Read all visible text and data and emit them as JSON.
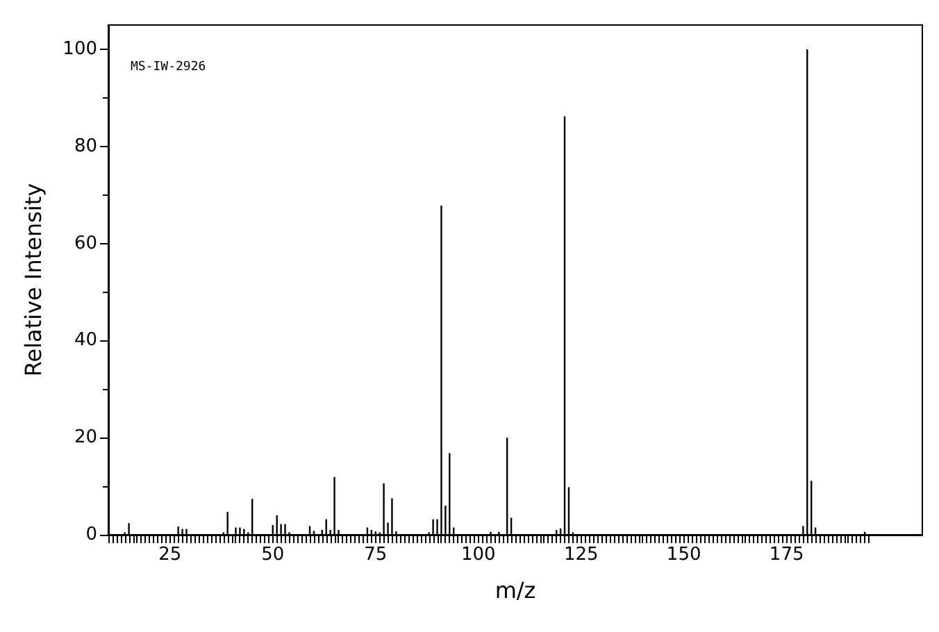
{
  "chart_data": {
    "type": "bar",
    "xlabel": "m/z",
    "ylabel": "Relative Intensity",
    "annotations": [
      "MS-IW-2926"
    ],
    "x": [
      14,
      15,
      27,
      28,
      29,
      38,
      39,
      41,
      42,
      43,
      44,
      45,
      50,
      51,
      52,
      53,
      54,
      59,
      60,
      62,
      63,
      64,
      65,
      66,
      73,
      74,
      75,
      76,
      77,
      78,
      79,
      80,
      88,
      89,
      90,
      91,
      92,
      93,
      94,
      103,
      105,
      107,
      108,
      119,
      120,
      121,
      122,
      123,
      179,
      180,
      181,
      182,
      194
    ],
    "values": [
      0.5,
      2.4,
      1.7,
      1.2,
      1.2,
      0.5,
      4.7,
      1.5,
      1.5,
      1.2,
      0.5,
      7.4,
      2,
      4,
      2.2,
      2.2,
      0.5,
      1.8,
      0.8,
      1,
      3.2,
      1,
      11.9,
      1,
      1.5,
      1,
      0.7,
      0.5,
      10.6,
      2.5,
      7.5,
      0.7,
      0.5,
      3.2,
      3.2,
      67.8,
      6,
      16.8,
      1.5,
      0.6,
      0.6,
      20,
      3.5,
      1,
      1.3,
      86.2,
      9.8,
      0.5,
      1.8,
      100,
      11.1,
      1.5,
      0.6
    ],
    "color": "#000000",
    "xlim": [
      10,
      208
    ],
    "xticks": [
      25,
      50,
      75,
      100,
      125,
      150,
      175
    ],
    "ylim": [
      0,
      105
    ],
    "yticks": [
      0,
      20,
      40,
      60,
      80,
      100
    ],
    "grid": false
  }
}
